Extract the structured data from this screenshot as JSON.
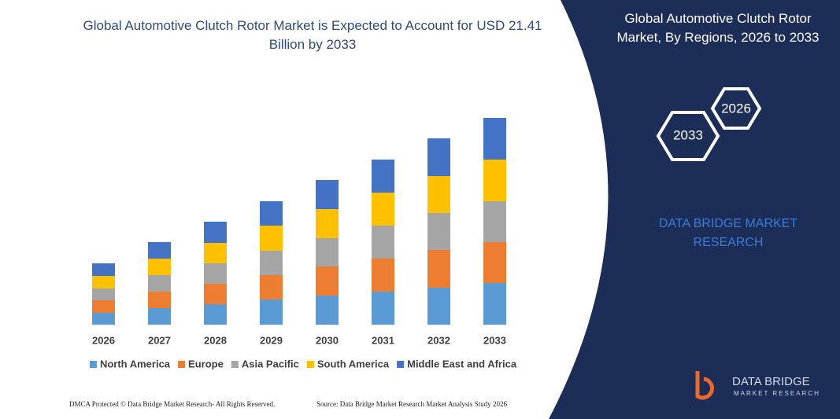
{
  "chart_data": {
    "type": "stacked-bar",
    "title": "Global Automotive Clutch Rotor Market is Expected to Account for USD 21.41 Billion by 2033",
    "categories": [
      "2026",
      "2027",
      "2028",
      "2029",
      "2030",
      "2031",
      "2032",
      "2033"
    ],
    "series": [
      {
        "name": "North America",
        "color": "#5b9bd5",
        "values": [
          15,
          21,
          26,
          32,
          37,
          42,
          47,
          53
        ]
      },
      {
        "name": "Europe",
        "color": "#ed7d31",
        "values": [
          16,
          21,
          26,
          31,
          37,
          42,
          48,
          52
        ]
      },
      {
        "name": "Asia Pacific",
        "color": "#a5a5a5",
        "values": [
          15,
          21,
          26,
          31,
          36,
          42,
          47,
          52
        ]
      },
      {
        "name": "South America",
        "color": "#ffc000",
        "values": [
          16,
          21,
          26,
          32,
          37,
          42,
          47,
          53
        ]
      },
      {
        "name": "Middle East and Africa",
        "color": "#4472c4",
        "values": [
          16,
          21,
          27,
          31,
          37,
          42,
          48,
          53
        ]
      }
    ]
  },
  "panel": {
    "title": "Global Automotive Clutch Rotor Market, By Regions, 2026 to 2033",
    "hex_start": "2026",
    "hex_end": "2033",
    "brand": "DATA BRIDGE MARKET RESEARCH",
    "logo_name": "DATA BRIDGE",
    "logo_sub": "MARKET RESEARCH"
  },
  "footer": {
    "left": "DMCA Protected © Data Bridge Market Research- All Rights Reserved.",
    "right": "Source: Data Bridge Market Research Market Analysis Study 2026"
  }
}
